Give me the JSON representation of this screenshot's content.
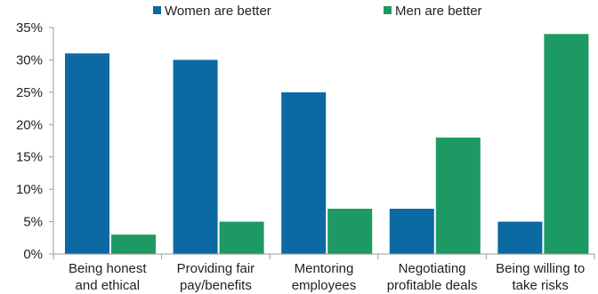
{
  "colors": {
    "women": "#0b6aa2",
    "men": "#1d9a63",
    "axis": "#9a9a9a"
  },
  "legend": {
    "position": "top-center"
  },
  "chart_data": {
    "type": "bar",
    "title": "",
    "xlabel": "",
    "ylabel": "",
    "categories": [
      [
        "Being honest",
        "and ethical"
      ],
      [
        "Providing fair",
        "pay/benefits"
      ],
      [
        "Mentoring",
        "employees"
      ],
      [
        "Negotiating",
        "profitable deals"
      ],
      [
        "Being willing to",
        "take risks"
      ]
    ],
    "series": [
      {
        "name": "Women are better",
        "values": [
          31,
          30,
          25,
          7,
          5
        ]
      },
      {
        "name": "Men are better",
        "values": [
          3,
          5,
          7,
          18,
          34
        ]
      }
    ],
    "ylim": [
      0,
      35
    ],
    "yticks": [
      "0%",
      "5%",
      "10%",
      "15%",
      "20%",
      "25%",
      "30%",
      "35%"
    ],
    "grid": false
  }
}
